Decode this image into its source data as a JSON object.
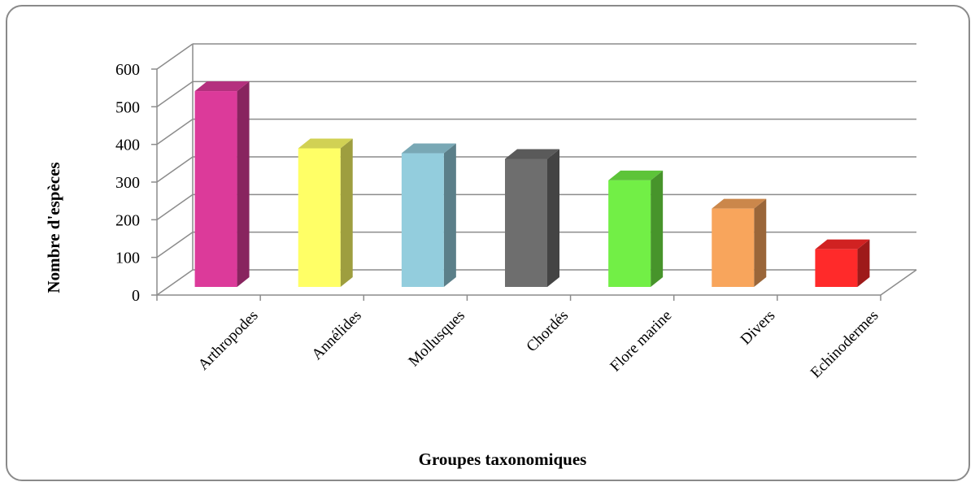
{
  "chart_data": {
    "type": "bar",
    "categories": [
      "Arthropodes",
      "Annélides",
      "Mollusques",
      "Chordés",
      "Flore marine",
      "Divers",
      "Echinodermes"
    ],
    "values": [
      520,
      368,
      355,
      340,
      283,
      208,
      100
    ],
    "xlabel": "Groupes taxonomiques",
    "ylabel": "Nombre d'espèces",
    "ylim": [
      0,
      600
    ],
    "yticks": [
      "0",
      "100",
      "200",
      "300",
      "400",
      "500",
      "600"
    ],
    "grid": true,
    "legend": "none",
    "colors": [
      "#dc3a9a",
      "#ffff66",
      "#93cddd",
      "#6e6e6e",
      "#72ef46",
      "#f8a55c",
      "#ff2a2a"
    ]
  }
}
